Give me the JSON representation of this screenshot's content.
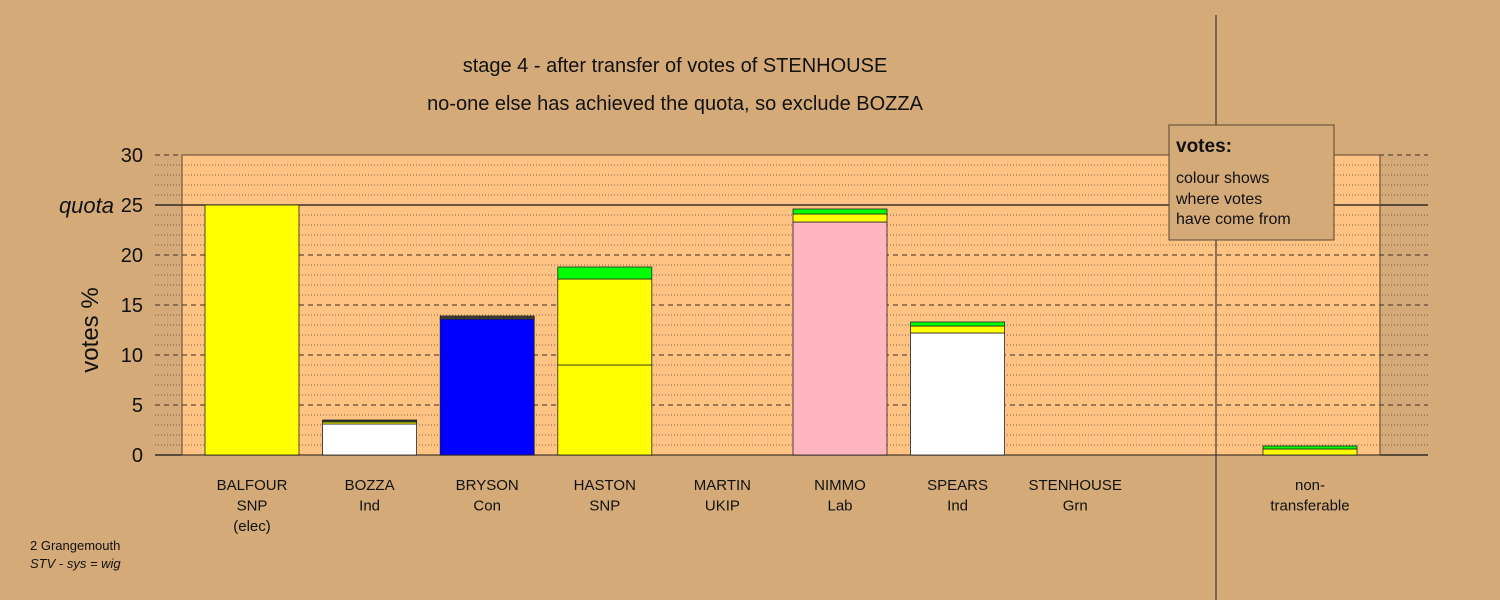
{
  "chart_data": {
    "type": "bar",
    "title": "stage 4 - after transfer of votes of STENHOUSE",
    "subtitle": "no-one else has achieved the quota, so exclude BOZZA",
    "ylabel": "votes %",
    "ylim": [
      0,
      30
    ],
    "yticks": [
      "0",
      "5",
      "10",
      "15",
      "20",
      "25",
      "30"
    ],
    "quota_label": "quota",
    "quota": 25,
    "stacked": true,
    "candidates": [
      {
        "name": "BALFOUR",
        "party": "SNP",
        "note": "(elec)",
        "segments": [
          {
            "color": "#ffff00",
            "value": 25.0
          }
        ]
      },
      {
        "name": "BOZZA",
        "party": "Ind",
        "note": "",
        "segments": [
          {
            "color": "#ffffff",
            "value": 3.1
          },
          {
            "color": "#ffff00",
            "value": 0.2
          },
          {
            "color": "#00ff00",
            "value": 0.1
          },
          {
            "color": "#444444",
            "value": 0.1
          }
        ]
      },
      {
        "name": "BRYSON",
        "party": "Con",
        "note": "",
        "segments": [
          {
            "color": "#0000ff",
            "value": 13.6
          },
          {
            "color": "#ffff00",
            "value": 0.1
          },
          {
            "color": "#444444",
            "value": 0.2
          }
        ]
      },
      {
        "name": "HASTON",
        "party": "SNP",
        "note": "",
        "segments": [
          {
            "color": "#ffff00",
            "value": 9.0
          },
          {
            "color": "#ffff00",
            "value": 8.6
          },
          {
            "color": "#00ff00",
            "value": 1.2
          }
        ]
      },
      {
        "name": "MARTIN",
        "party": "UKIP",
        "note": "",
        "segments": []
      },
      {
        "name": "NIMMO",
        "party": "Lab",
        "note": "",
        "segments": [
          {
            "color": "#ffb6c1",
            "value": 23.3
          },
          {
            "color": "#ffff00",
            "value": 0.8
          },
          {
            "color": "#00ff00",
            "value": 0.5
          }
        ]
      },
      {
        "name": "SPEARS",
        "party": "Ind",
        "note": "",
        "segments": [
          {
            "color": "#ffffff",
            "value": 12.2
          },
          {
            "color": "#ffff00",
            "value": 0.7
          },
          {
            "color": "#00ff00",
            "value": 0.4
          }
        ]
      },
      {
        "name": "STENHOUSE",
        "party": "Grn",
        "note": "",
        "segments": []
      }
    ],
    "nontransferable": {
      "name": "non-",
      "party": "transferable",
      "segments": [
        {
          "color": "#ffff00",
          "value": 0.6
        },
        {
          "color": "#00ff00",
          "value": 0.3
        }
      ]
    },
    "legend": {
      "title": "votes:",
      "lines": [
        "colour shows",
        "where votes",
        "have come from"
      ]
    },
    "colors": {
      "background": "#d4aa78",
      "panel": "#ffc483",
      "snp": "#ffff00",
      "con": "#0000ff",
      "lab": "#ffb6c1",
      "ind": "#ffffff",
      "grn": "#00ff00"
    }
  },
  "footer": {
    "ward": "2 Grangemouth",
    "system": "STV - sys = wig"
  }
}
